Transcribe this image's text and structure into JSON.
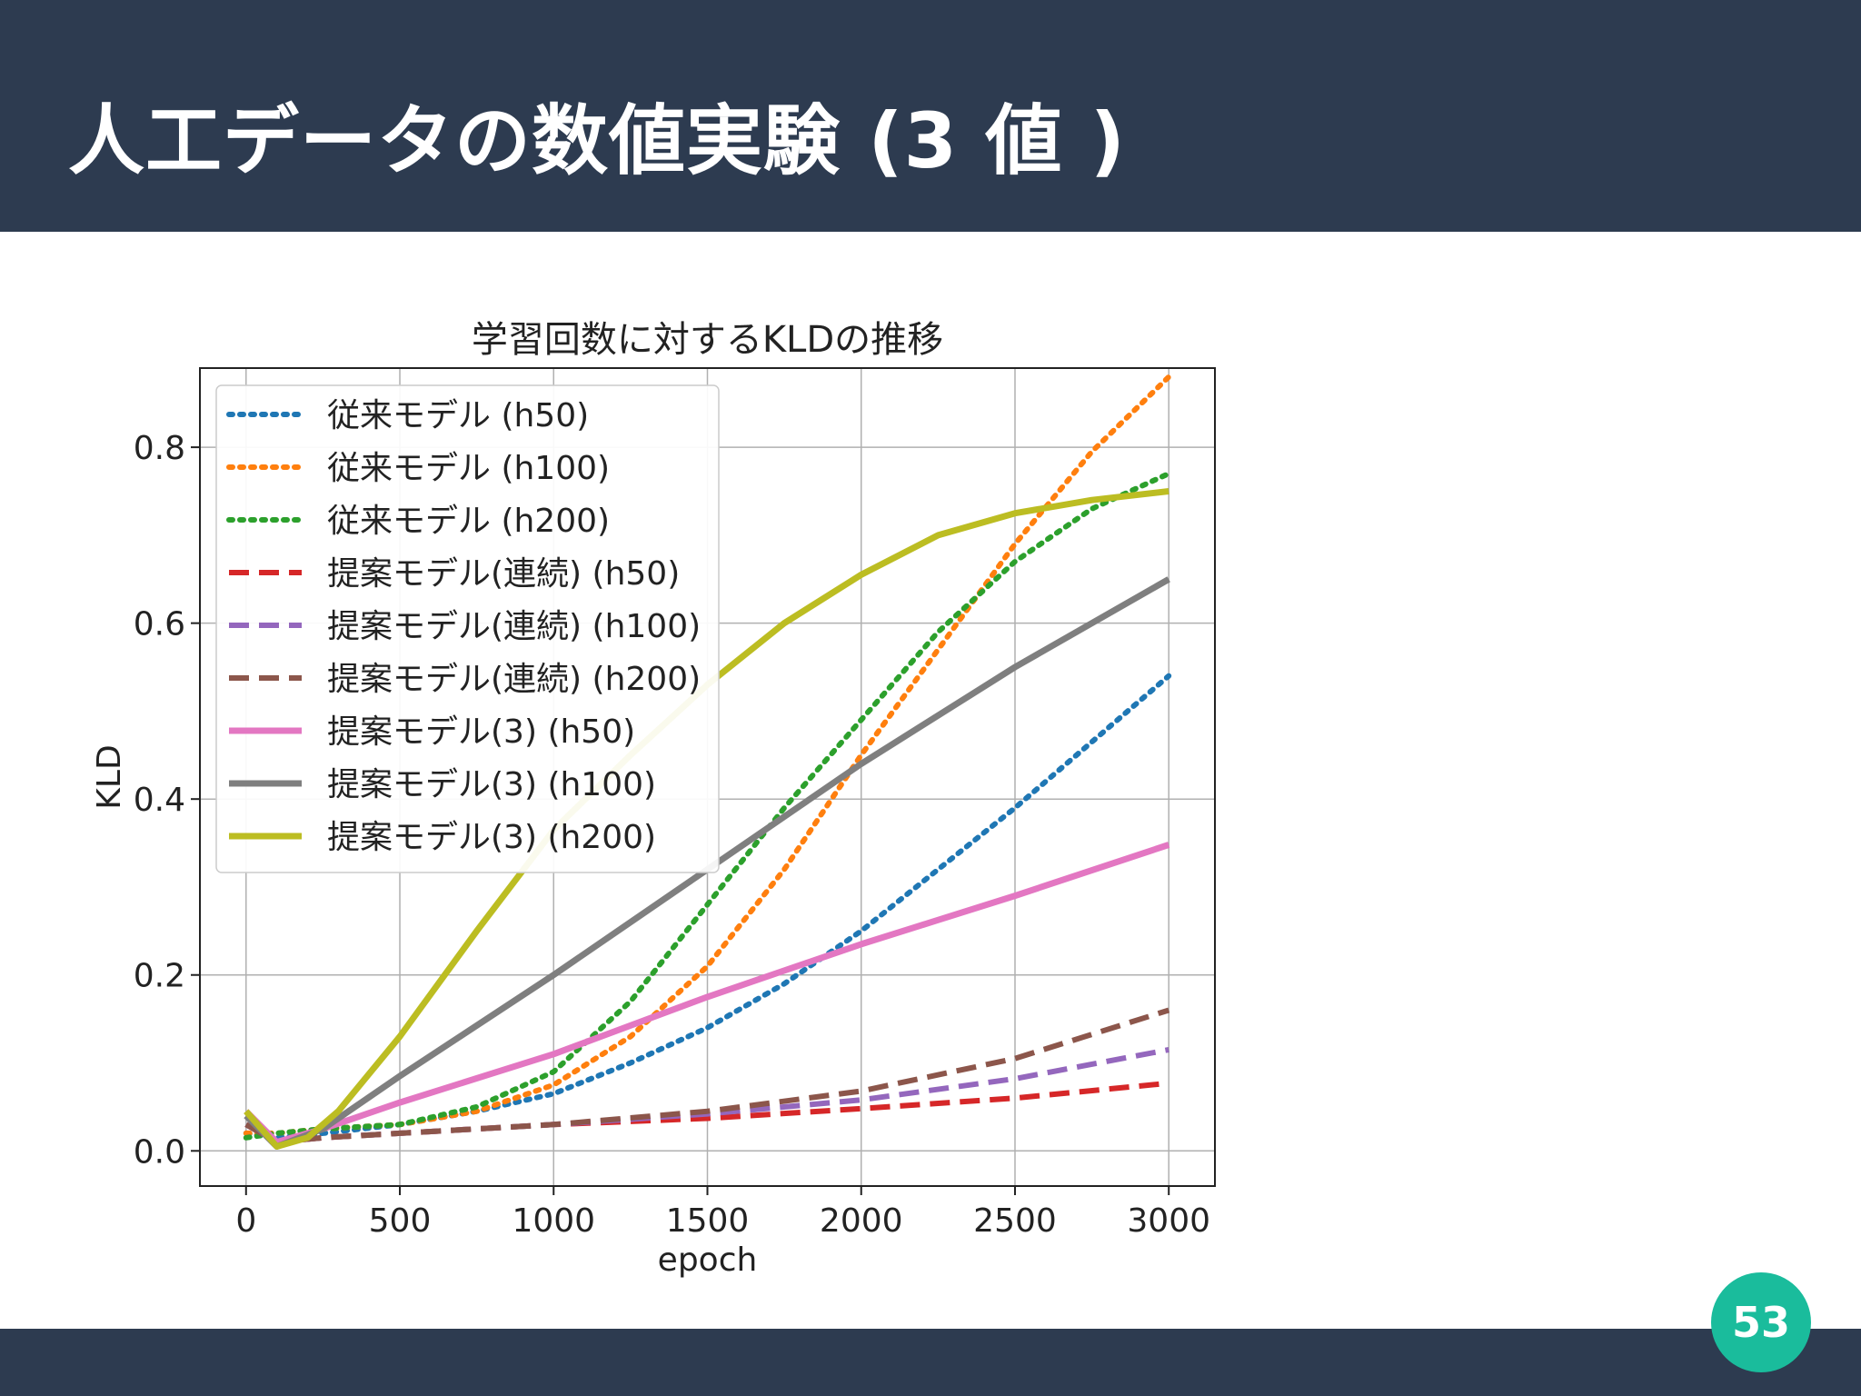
{
  "slide": {
    "title": "人工データの数値実験 (3 値 )",
    "page_number": "53",
    "header_color": "#2d3b50",
    "badge_color": "#1abc9c"
  },
  "chart_data": {
    "type": "line",
    "title": "学習回数に対するKLDの推移",
    "xlabel": "epoch",
    "ylabel": "KLD",
    "xlim": [
      -150,
      3150
    ],
    "ylim": [
      -0.04,
      0.89
    ],
    "xticks": [
      0,
      500,
      1000,
      1500,
      2000,
      2500,
      3000
    ],
    "yticks": [
      0.0,
      0.2,
      0.4,
      0.6,
      0.8
    ],
    "ytick_labels": [
      "0.0",
      "0.2",
      "0.4",
      "0.6",
      "0.8"
    ],
    "grid": true,
    "legend_position": "top-left",
    "series": [
      {
        "name": "従来モデル (h50)",
        "color": "#1f77b4",
        "style": "dotted",
        "x": [
          0,
          100,
          250,
          500,
          750,
          1000,
          1250,
          1500,
          1750,
          2000,
          2250,
          2500,
          2750,
          3000
        ],
        "y": [
          0.02,
          0.015,
          0.02,
          0.03,
          0.045,
          0.065,
          0.1,
          0.14,
          0.19,
          0.25,
          0.32,
          0.39,
          0.465,
          0.54
        ]
      },
      {
        "name": "従来モデル (h100)",
        "color": "#ff7f0e",
        "style": "dotted",
        "x": [
          0,
          100,
          250,
          500,
          750,
          1000,
          1250,
          1500,
          1750,
          2000,
          2250,
          2500,
          2750,
          3000
        ],
        "y": [
          0.02,
          0.02,
          0.025,
          0.03,
          0.045,
          0.075,
          0.13,
          0.21,
          0.32,
          0.45,
          0.57,
          0.69,
          0.795,
          0.88
        ]
      },
      {
        "name": "従来モデル (h200)",
        "color": "#2ca02c",
        "style": "dotted",
        "x": [
          0,
          100,
          250,
          500,
          750,
          1000,
          1250,
          1500,
          1750,
          2000,
          2250,
          2500,
          2750,
          3000
        ],
        "y": [
          0.015,
          0.02,
          0.025,
          0.03,
          0.05,
          0.09,
          0.17,
          0.28,
          0.39,
          0.49,
          0.59,
          0.67,
          0.73,
          0.77
        ]
      },
      {
        "name": "提案モデル(連続) (h50)",
        "color": "#d62728",
        "style": "dashed",
        "x": [
          0,
          100,
          250,
          500,
          1000,
          1500,
          2000,
          2500,
          3000
        ],
        "y": [
          0.03,
          0.01,
          0.015,
          0.02,
          0.03,
          0.037,
          0.048,
          0.06,
          0.077
        ]
      },
      {
        "name": "提案モデル(連続) (h100)",
        "color": "#9467bd",
        "style": "dashed",
        "x": [
          0,
          100,
          250,
          500,
          1000,
          1500,
          2000,
          2500,
          3000
        ],
        "y": [
          0.03,
          0.01,
          0.015,
          0.02,
          0.03,
          0.042,
          0.058,
          0.082,
          0.115
        ]
      },
      {
        "name": "提案モデル(連続) (h200)",
        "color": "#8c564b",
        "style": "dashed",
        "x": [
          0,
          100,
          250,
          500,
          1000,
          1500,
          2000,
          2500,
          3000
        ],
        "y": [
          0.03,
          0.01,
          0.015,
          0.02,
          0.03,
          0.045,
          0.068,
          0.105,
          0.16
        ]
      },
      {
        "name": "提案モデル(3) (h50)",
        "color": "#e377c2",
        "style": "solid",
        "x": [
          0,
          100,
          250,
          500,
          1000,
          1500,
          2000,
          2500,
          3000
        ],
        "y": [
          0.045,
          0.01,
          0.025,
          0.055,
          0.11,
          0.175,
          0.235,
          0.29,
          0.348
        ]
      },
      {
        "name": "提案モデル(3) (h100)",
        "color": "#7f7f7f",
        "style": "solid",
        "x": [
          0,
          100,
          250,
          500,
          1000,
          1500,
          2000,
          2500,
          3000
        ],
        "y": [
          0.04,
          0.005,
          0.025,
          0.085,
          0.2,
          0.32,
          0.44,
          0.55,
          0.65
        ]
      },
      {
        "name": "提案モデル(3) (h200)",
        "color": "#bcbd22",
        "style": "solid",
        "x": [
          0,
          100,
          200,
          300,
          500,
          750,
          1000,
          1250,
          1500,
          1750,
          2000,
          2250,
          2500,
          2750,
          3000
        ],
        "y": [
          0.045,
          0.005,
          0.015,
          0.045,
          0.13,
          0.25,
          0.365,
          0.45,
          0.53,
          0.6,
          0.655,
          0.7,
          0.725,
          0.74,
          0.75
        ]
      }
    ]
  }
}
